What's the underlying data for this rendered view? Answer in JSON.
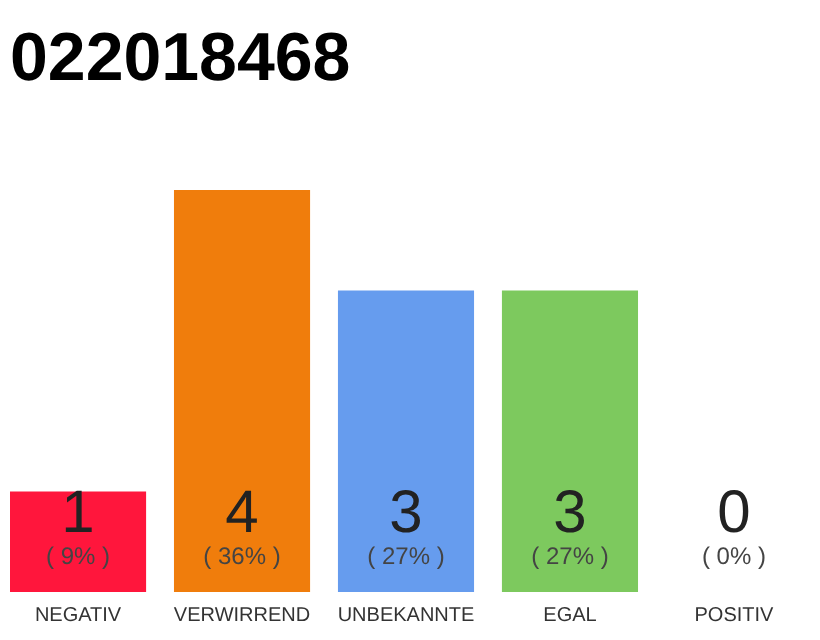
{
  "chart_data": {
    "type": "bar",
    "title": "022018468",
    "categories": [
      "NEGATIV",
      "VERWIRREND",
      "UNBEKANNTE",
      "EGAL",
      "POSITIV"
    ],
    "values": [
      1,
      4,
      3,
      3,
      0
    ],
    "colors": [
      "#ff163c",
      "#f07d0c",
      "#669cee",
      "#7dc95e",
      "#2db14d"
    ],
    "data_labels": true,
    "grid": false,
    "annotations": [
      "( 9% )",
      "( 36% )",
      "( 27% )",
      "( 27% )",
      "( 0% )"
    ]
  }
}
